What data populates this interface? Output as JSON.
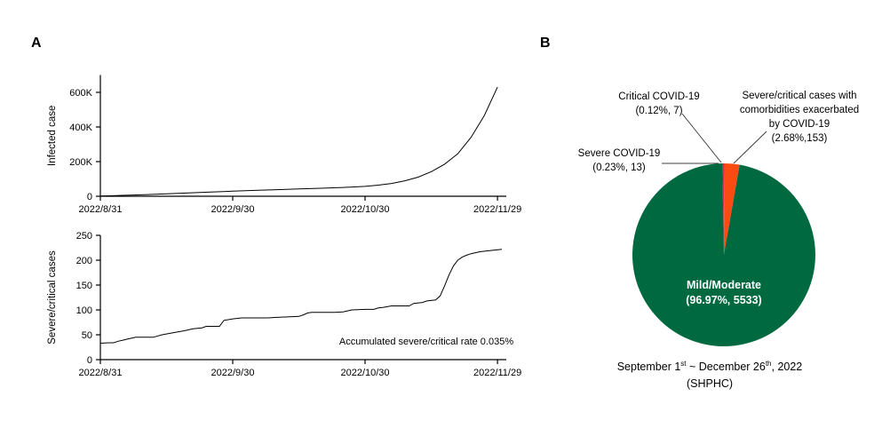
{
  "panel_a": {
    "label": "A"
  },
  "panel_b": {
    "label": "B"
  },
  "chart_data": [
    {
      "id": "infected-cases-line",
      "type": "line",
      "title": "",
      "ylabel": "Infected case",
      "xlabel": "",
      "x_ticks": [
        0,
        30,
        60,
        90
      ],
      "x_tick_labels": [
        "2022/8/31",
        "2022/9/30",
        "2022/10/30",
        "2022/11/29"
      ],
      "y_ticks": [
        0,
        200000,
        400000,
        600000
      ],
      "y_tick_labels": [
        "0",
        "200K",
        "400K",
        "600K"
      ],
      "xlim": [
        0,
        92
      ],
      "ylim": [
        0,
        700000
      ],
      "grid": false,
      "legend": "none",
      "line_color": "#000000",
      "points": [
        [
          0,
          1000
        ],
        [
          5,
          5000
        ],
        [
          10,
          9000
        ],
        [
          15,
          14000
        ],
        [
          20,
          19000
        ],
        [
          25,
          24000
        ],
        [
          30,
          29000
        ],
        [
          35,
          34000
        ],
        [
          40,
          38000
        ],
        [
          45,
          42000
        ],
        [
          50,
          46000
        ],
        [
          55,
          51000
        ],
        [
          60,
          57000
        ],
        [
          63,
          64000
        ],
        [
          66,
          74000
        ],
        [
          69,
          89000
        ],
        [
          72,
          110000
        ],
        [
          75,
          142000
        ],
        [
          78,
          185000
        ],
        [
          81,
          245000
        ],
        [
          84,
          340000
        ],
        [
          87,
          465000
        ],
        [
          90,
          630000
        ]
      ]
    },
    {
      "id": "severe-critical-line",
      "type": "line",
      "title": "",
      "ylabel": "Severe/critical cases",
      "xlabel": "",
      "x_ticks": [
        0,
        30,
        60,
        90
      ],
      "x_tick_labels": [
        "2022/8/31",
        "2022/9/30",
        "2022/10/30",
        "2022/11/29"
      ],
      "y_ticks": [
        0,
        50,
        100,
        150,
        200,
        250
      ],
      "y_tick_labels": [
        "0",
        "50",
        "100",
        "150",
        "200",
        "250"
      ],
      "xlim": [
        0,
        92
      ],
      "ylim": [
        0,
        250
      ],
      "grid": false,
      "legend": "none",
      "line_color": "#000000",
      "annotation": "Accumulated severe/critical rate 0.035%",
      "points": [
        [
          0,
          33
        ],
        [
          2,
          34
        ],
        [
          3,
          34
        ],
        [
          4,
          37
        ],
        [
          5,
          39
        ],
        [
          6,
          41
        ],
        [
          7,
          43
        ],
        [
          8,
          45
        ],
        [
          12,
          45
        ],
        [
          14,
          50
        ],
        [
          17,
          55
        ],
        [
          19,
          58
        ],
        [
          21,
          62
        ],
        [
          23,
          64
        ],
        [
          24,
          67
        ],
        [
          27,
          67
        ],
        [
          28,
          79
        ],
        [
          30,
          82
        ],
        [
          32,
          84
        ],
        [
          38,
          84
        ],
        [
          40,
          85
        ],
        [
          43,
          86
        ],
        [
          45,
          87
        ],
        [
          46,
          90
        ],
        [
          47,
          94
        ],
        [
          48,
          95
        ],
        [
          53,
          95
        ],
        [
          55,
          96
        ],
        [
          57,
          100
        ],
        [
          60,
          101
        ],
        [
          62,
          101
        ],
        [
          63,
          104
        ],
        [
          64,
          105
        ],
        [
          66,
          108
        ],
        [
          70,
          108
        ],
        [
          71,
          113
        ],
        [
          73,
          115
        ],
        [
          74,
          118
        ],
        [
          76,
          120
        ],
        [
          77,
          128
        ],
        [
          78,
          148
        ],
        [
          79,
          170
        ],
        [
          80,
          188
        ],
        [
          81,
          200
        ],
        [
          82,
          206
        ],
        [
          83,
          210
        ],
        [
          84,
          213
        ],
        [
          86,
          217
        ],
        [
          88,
          219
        ],
        [
          91,
          222
        ]
      ]
    },
    {
      "id": "severity-pie",
      "type": "pie",
      "start_angle_deg": -91,
      "direction": "clockwise",
      "slices": [
        {
          "name": "Severe COVID-19",
          "pct": 0.23,
          "count": 13,
          "color": "#c8104b"
        },
        {
          "name": "Critical COVID-19",
          "pct": 0.12,
          "count": 7,
          "color": "#d92318"
        },
        {
          "name": "Severe/critical cases with comorbidities exacerbated by COVID-19",
          "pct": 2.68,
          "count": 153,
          "color": "#fb4a12"
        },
        {
          "name": "Mild/Moderate",
          "pct": 96.97,
          "count": 5533,
          "color": "#006940"
        }
      ]
    }
  ],
  "pie": {
    "labels": {
      "critical": [
        "Critical COVID-19",
        "(0.12%, 7)"
      ],
      "comorbid": [
        "Severe/critical cases with",
        "comorbidities exacerbated",
        "by COVID-19",
        "(2.68%,153)"
      ],
      "severe": [
        "Severe COVID-19",
        "(0.23%, 13)"
      ],
      "inner": [
        "Mild/Moderate",
        "(96.97%, 5533)"
      ]
    },
    "caption": {
      "part1": "September 1",
      "sup1": "st",
      "part2": " ~ December 26",
      "sup2": "th",
      "part3": ", 2022",
      "line2": "(SHPHC)"
    }
  }
}
